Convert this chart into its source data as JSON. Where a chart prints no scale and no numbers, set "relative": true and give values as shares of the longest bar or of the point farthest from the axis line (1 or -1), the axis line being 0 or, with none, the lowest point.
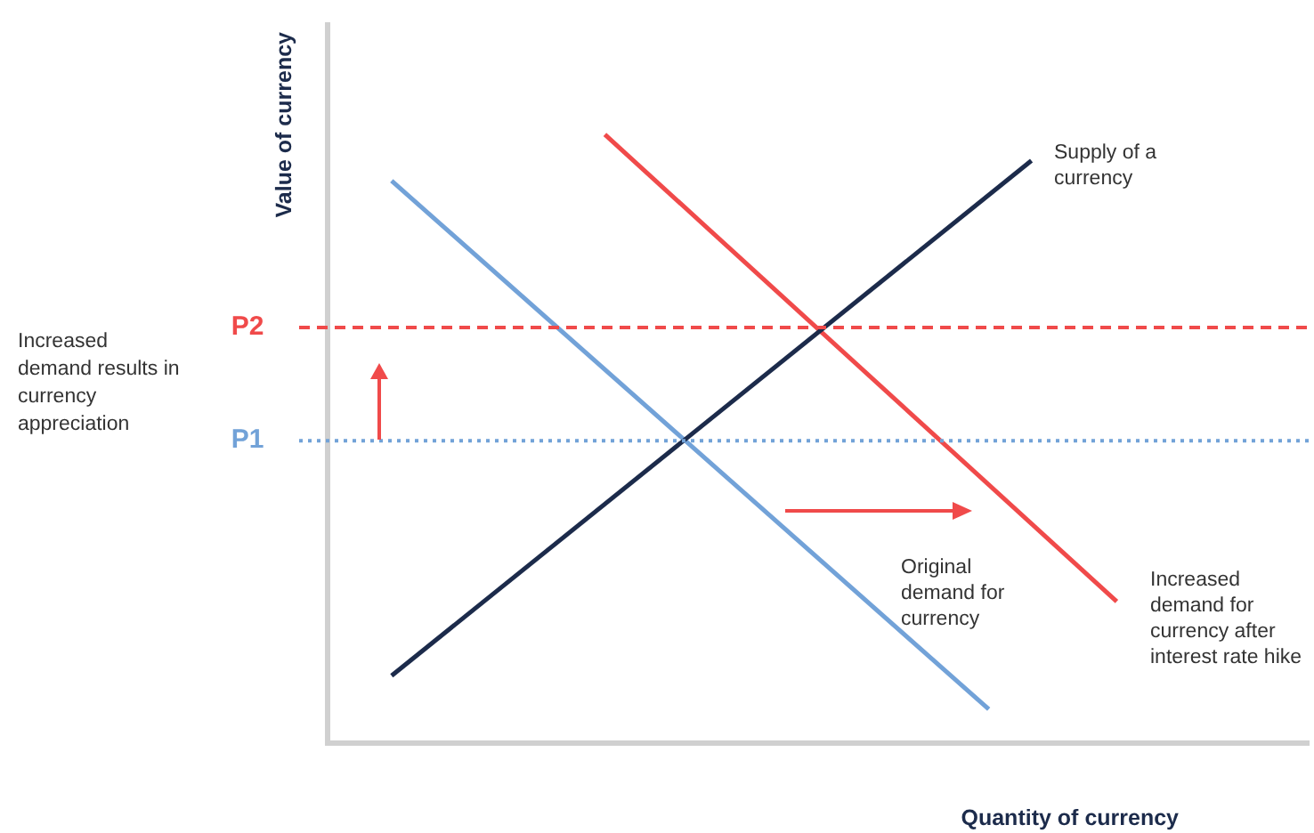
{
  "chart_data": {
    "type": "line",
    "relative": true,
    "ylabel": "Value of currency",
    "xlabel": "Quantity of currency",
    "legend": false,
    "grid": false,
    "marker": "none",
    "line_style": "solid",
    "categories": [
      null,
      null,
      null,
      null,
      null,
      null,
      null,
      null,
      null,
      null,
      null,
      null,
      null,
      null,
      null,
      null,
      null,
      null,
      null,
      null,
      null,
      null,
      null,
      null,
      null,
      null,
      null,
      null,
      null,
      null,
      null,
      null,
      null,
      null,
      null,
      null,
      null,
      null,
      null,
      null,
      null,
      null,
      null,
      null,
      null,
      null,
      null
    ],
    "series": [
      {
        "name": "Supply of a currency",
        "color": "#1c2b4b",
        "values": [
          null,
          null,
          null,
          0.111,
          null,
          null,
          null,
          null,
          null,
          null,
          null,
          null,
          null,
          null,
          null,
          null,
          null,
          null,
          null,
          null,
          null,
          null,
          null,
          null,
          null,
          null,
          null,
          null,
          null,
          null,
          null,
          null,
          null,
          0.957,
          null,
          null,
          null,
          null,
          null,
          null,
          null,
          null,
          null,
          null,
          null,
          null,
          null
        ]
      },
      {
        "name": "Original demand for currency",
        "color": "#72a2d8",
        "values": [
          null,
          null,
          null,
          0.924,
          null,
          null,
          null,
          null,
          null,
          null,
          null,
          null,
          null,
          null,
          null,
          null,
          null,
          null,
          null,
          null,
          null,
          null,
          null,
          null,
          null,
          null,
          null,
          null,
          null,
          null,
          null,
          0.056,
          null,
          null,
          null,
          null,
          null,
          null,
          null,
          null,
          null,
          null,
          null,
          null,
          null,
          null,
          null
        ]
      },
      {
        "name": "Increased demand for currency after interest rate hike",
        "color": "#f04a4a",
        "values": [
          null,
          null,
          null,
          null,
          null,
          null,
          null,
          null,
          null,
          null,
          null,
          null,
          null,
          1,
          null,
          null,
          null,
          null,
          null,
          null,
          null,
          null,
          null,
          null,
          null,
          null,
          null,
          null,
          null,
          null,
          null,
          null,
          null,
          null,
          null,
          null,
          null,
          0.233,
          null,
          null,
          null,
          null,
          null,
          null,
          null,
          null,
          null
        ]
      }
    ],
    "ref_lines": [
      {
        "axis": "y",
        "value": 0.683,
        "label": "P2",
        "color": "#f04a4a",
        "line_style": "dashed"
      },
      {
        "axis": "y",
        "value": 0.497,
        "label": "P1",
        "color": "#72a2d8",
        "line_style": "dotted"
      }
    ],
    "annotations": [
      "Increased demand results in currency appreciation"
    ]
  }
}
